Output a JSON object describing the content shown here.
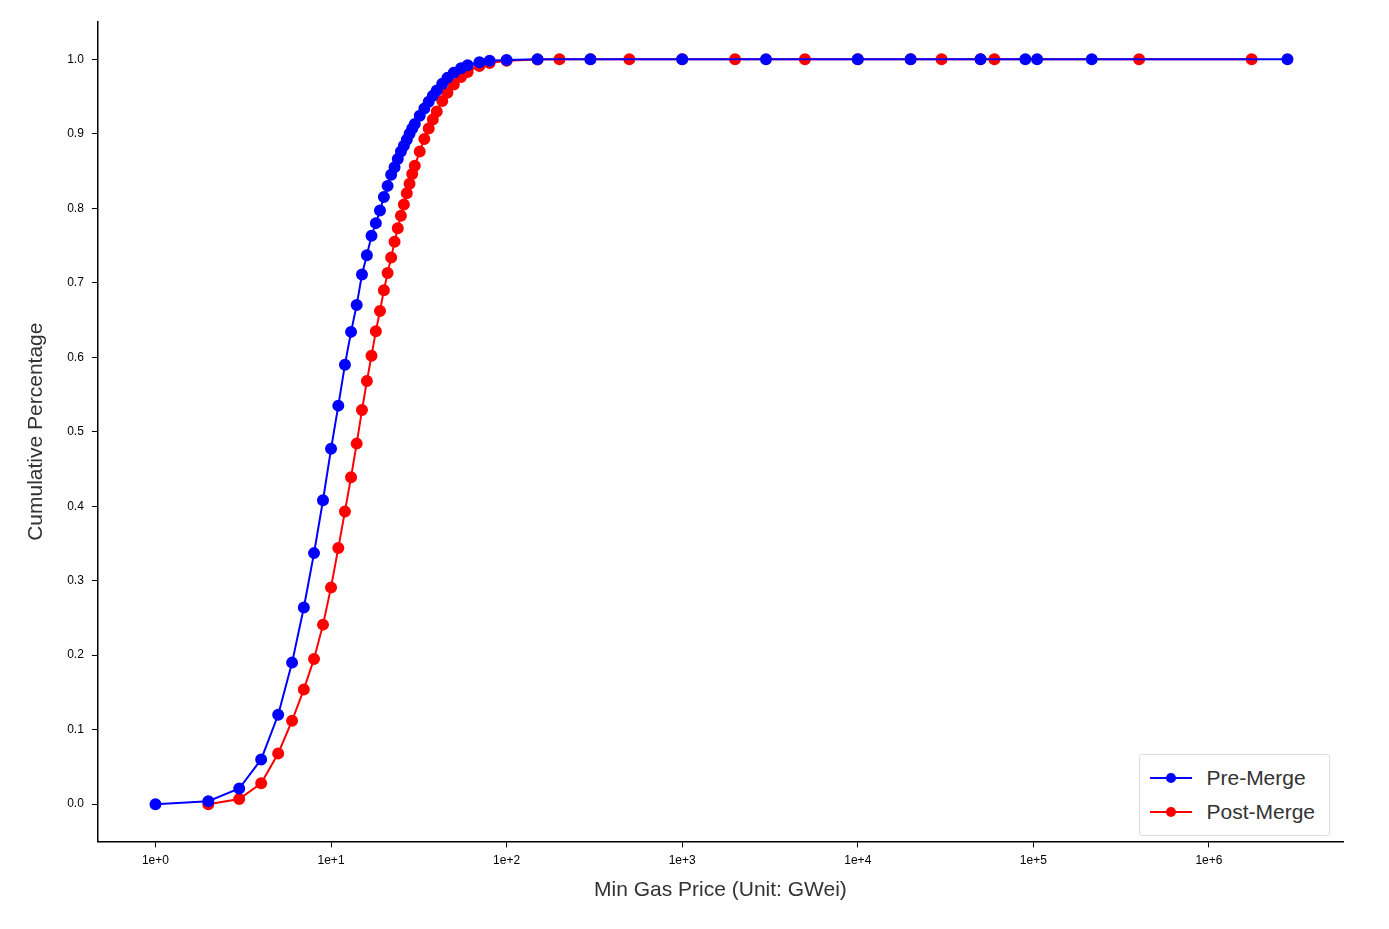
{
  "chart_data": {
    "type": "line",
    "x_label": "Min Gas Price (Unit: GWei)",
    "y_label": "Cumulative Percentage",
    "log": "x",
    "grid": false,
    "legend": "bottom-right",
    "xlim": [
      0.47,
      5800000
    ],
    "xticks": [
      {
        "value": 1,
        "label": "1e+0"
      },
      {
        "value": 10,
        "label": "1e+1"
      },
      {
        "value": 100,
        "label": "1e+2"
      },
      {
        "value": 1000,
        "label": "1e+3"
      },
      {
        "value": 10000,
        "label": "1e+4"
      },
      {
        "value": 100000,
        "label": "1e+5"
      },
      {
        "value": 1000000,
        "label": "1e+6"
      }
    ],
    "ylim": [
      -0.05,
      1.05
    ],
    "yticks": [
      {
        "value": 0,
        "label": "0.0"
      },
      0.1,
      0.2,
      0.3,
      0.4,
      0.5,
      0.6,
      0.7,
      0.8,
      0.9,
      {
        "value": 1,
        "label": "1.0"
      }
    ],
    "series": [
      {
        "name": "Pre-Merge",
        "color": "#0000ff",
        "marker": "circle",
        "line_style": "solid",
        "x": [
          1,
          2,
          3,
          4,
          5,
          6,
          7,
          8,
          9,
          10,
          11,
          12,
          13,
          14,
          15,
          16,
          17,
          18,
          19,
          20,
          21,
          22,
          23,
          24,
          25,
          26,
          27,
          28,
          29,
          30,
          32,
          34,
          36,
          38,
          40,
          43,
          46,
          50,
          55,
          60,
          70,
          80,
          100,
          150,
          300,
          1000,
          3000,
          10000,
          20000,
          50000,
          90000,
          105000,
          215000,
          2800000
        ],
        "values": [
          0.0,
          0.004,
          0.021,
          0.06,
          0.12,
          0.19,
          0.264,
          0.337,
          0.408,
          0.477,
          0.535,
          0.59,
          0.634,
          0.67,
          0.711,
          0.737,
          0.763,
          0.78,
          0.797,
          0.815,
          0.83,
          0.845,
          0.855,
          0.866,
          0.876,
          0.884,
          0.892,
          0.9,
          0.907,
          0.913,
          0.924,
          0.934,
          0.943,
          0.951,
          0.958,
          0.967,
          0.975,
          0.982,
          0.988,
          0.992,
          0.996,
          0.998,
          0.999,
          1.0,
          1.0,
          1.0,
          1.0,
          1.0,
          1.0,
          1.0,
          1.0,
          1.0,
          1.0,
          1.0
        ]
      },
      {
        "name": "Post-Merge",
        "color": "#ff0000",
        "marker": "circle",
        "line_style": "solid",
        "x": [
          2,
          3,
          4,
          5,
          6,
          7,
          8,
          9,
          10,
          11,
          12,
          13,
          14,
          15,
          16,
          17,
          18,
          19,
          20,
          21,
          22,
          23,
          24,
          25,
          26,
          27,
          28,
          29,
          30,
          32,
          34,
          36,
          38,
          40,
          43,
          46,
          50,
          55,
          60,
          70,
          80,
          100,
          150,
          200,
          300,
          500,
          1000,
          2000,
          5000,
          10000,
          20000,
          30000,
          50000,
          60000,
          400000,
          1750000
        ],
        "values": [
          0.0,
          0.007,
          0.028,
          0.068,
          0.112,
          0.154,
          0.195,
          0.241,
          0.291,
          0.344,
          0.393,
          0.439,
          0.484,
          0.529,
          0.568,
          0.602,
          0.635,
          0.662,
          0.69,
          0.713,
          0.734,
          0.755,
          0.773,
          0.79,
          0.805,
          0.82,
          0.833,
          0.846,
          0.857,
          0.876,
          0.893,
          0.907,
          0.919,
          0.93,
          0.944,
          0.955,
          0.966,
          0.976,
          0.983,
          0.991,
          0.995,
          0.998,
          0.9995,
          1.0,
          1.0,
          1.0,
          1.0,
          1.0,
          1.0,
          1.0,
          1.0,
          1.0,
          1.0,
          1.0,
          1.0,
          1.0
        ]
      }
    ]
  }
}
